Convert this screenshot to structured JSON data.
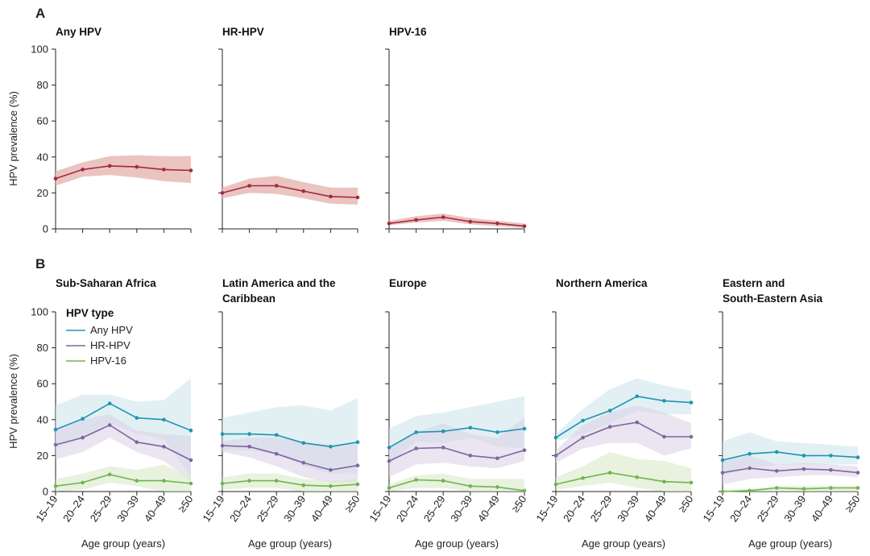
{
  "colors": {
    "overall": "#a3293c",
    "overall_band": "#e8b8b5",
    "any_hpv": "#1f95b0",
    "any_hpv_band": "#cfe6ec",
    "hr_hpv": "#7d67a3",
    "hr_hpv_band": "#dcd3e6",
    "hpv16": "#6fb54d",
    "hpv16_band": "#d8e9c9"
  },
  "labels": {
    "panel_a": "A",
    "panel_b": "B",
    "ylabel": "HPV prevalence (%)",
    "xlabel": "Age group (years)",
    "legend_title": "HPV type"
  },
  "chart_data": [
    {
      "panel": "A",
      "title": "Any HPV",
      "type": "line",
      "categories": [
        "15–19",
        "20–24",
        "25–29",
        "30–39",
        "40–49",
        "≥50"
      ],
      "ylim": [
        0,
        100
      ],
      "yticks": [
        0,
        20,
        40,
        60,
        80,
        100
      ],
      "xlabel": "",
      "ylabel": "HPV prevalence (%)",
      "series": [
        {
          "name": "Any HPV",
          "values": [
            28,
            33,
            35,
            34.5,
            33,
            32.5
          ],
          "lower": [
            24,
            29,
            30,
            28.5,
            26.5,
            25.5
          ],
          "upper": [
            32,
            37,
            40.5,
            41,
            40.5,
            40.5
          ]
        }
      ]
    },
    {
      "panel": "A",
      "title": "HR-HPV",
      "type": "line",
      "categories": [
        "15–19",
        "20–24",
        "25–29",
        "30–39",
        "40–49",
        "≥50"
      ],
      "ylim": [
        0,
        100
      ],
      "yticks": [
        0,
        20,
        40,
        60,
        80,
        100
      ],
      "xlabel": "",
      "ylabel": "",
      "series": [
        {
          "name": "HR-HPV",
          "values": [
            20,
            24,
            24,
            21,
            18,
            17.5
          ],
          "lower": [
            17,
            20,
            19.5,
            17,
            14,
            13.5
          ],
          "upper": [
            23,
            28,
            29.5,
            26,
            23,
            23
          ]
        }
      ]
    },
    {
      "panel": "A",
      "title": "HPV-16",
      "type": "line",
      "categories": [
        "15–19",
        "20–24",
        "25–29",
        "30–39",
        "40–49",
        "≥50"
      ],
      "ylim": [
        0,
        100
      ],
      "yticks": [
        0,
        20,
        40,
        60,
        80,
        100
      ],
      "xlabel": "",
      "ylabel": "",
      "series": [
        {
          "name": "HPV-16",
          "values": [
            3,
            5,
            6.5,
            4,
            3,
            1.5
          ],
          "lower": [
            2,
            3.5,
            4.5,
            2.5,
            1.5,
            0.5
          ],
          "upper": [
            4.5,
            7,
            8.5,
            6,
            4.5,
            3
          ]
        }
      ]
    },
    {
      "panel": "B",
      "title": "Sub-Saharan Africa",
      "type": "line",
      "categories": [
        "15–19",
        "20–24",
        "25–29",
        "30–39",
        "40–49",
        "≥50"
      ],
      "ylim": [
        0,
        100
      ],
      "yticks": [
        0,
        20,
        40,
        60,
        80,
        100
      ],
      "xlabel": "Age group (years)",
      "ylabel": "HPV prevalence (%)",
      "series": [
        {
          "name": "Any HPV",
          "values": [
            34.5,
            40.5,
            49,
            41,
            40,
            34
          ],
          "lower": [
            24,
            30,
            38,
            32,
            29,
            8
          ],
          "upper": [
            48,
            54,
            54,
            50,
            51,
            63
          ]
        },
        {
          "name": "HR-HPV",
          "values": [
            26,
            30,
            37,
            27.5,
            25,
            17.5
          ],
          "lower": [
            18,
            22,
            30,
            22,
            17,
            6
          ],
          "upper": [
            35,
            40,
            43,
            34,
            32,
            31
          ]
        },
        {
          "name": "HPV-16",
          "values": [
            3,
            5,
            9.5,
            6,
            6,
            4.5
          ],
          "lower": [
            0,
            1,
            5,
            3,
            0,
            0
          ],
          "upper": [
            7,
            10,
            14,
            12,
            15,
            8
          ]
        }
      ]
    },
    {
      "panel": "B",
      "title": "Latin America and the Caribbean",
      "type": "line",
      "categories": [
        "15–19",
        "20–24",
        "25–29",
        "30–39",
        "40–49",
        "≥50"
      ],
      "ylim": [
        0,
        100
      ],
      "yticks": [
        0,
        20,
        40,
        60,
        80,
        100
      ],
      "xlabel": "Age group (years)",
      "ylabel": "",
      "series": [
        {
          "name": "Any HPV",
          "values": [
            32,
            32,
            31.5,
            27,
            25,
            27.5
          ],
          "lower": [
            23,
            23,
            21,
            14,
            10,
            10
          ],
          "upper": [
            41,
            44,
            47,
            48,
            45,
            52
          ]
        },
        {
          "name": "HR-HPV",
          "values": [
            25.5,
            25,
            21,
            16,
            12,
            14.5
          ],
          "lower": [
            22,
            19,
            14,
            8,
            5,
            5
          ],
          "upper": [
            28,
            30,
            30,
            28,
            26,
            27
          ]
        },
        {
          "name": "HPV-16",
          "values": [
            4.5,
            6,
            6,
            3.5,
            3,
            4
          ],
          "lower": [
            1,
            2,
            2,
            0,
            0,
            0
          ],
          "upper": [
            8,
            10,
            10,
            7,
            6,
            7
          ]
        }
      ]
    },
    {
      "panel": "B",
      "title": "Europe",
      "type": "line",
      "categories": [
        "15–19",
        "20–24",
        "25–29",
        "30–39",
        "40–49",
        "≥50"
      ],
      "ylim": [
        0,
        100
      ],
      "yticks": [
        0,
        20,
        40,
        60,
        80,
        100
      ],
      "xlabel": "Age group (years)",
      "ylabel": "",
      "series": [
        {
          "name": "Any HPV",
          "values": [
            24.5,
            33,
            33.5,
            35.5,
            33,
            35
          ],
          "lower": [
            15,
            28,
            27,
            30,
            25,
            24
          ],
          "upper": [
            35,
            42,
            44,
            47,
            50,
            53
          ]
        },
        {
          "name": "HR-HPV",
          "values": [
            17,
            24,
            24.5,
            20,
            18.5,
            23
          ],
          "lower": [
            8,
            15,
            16,
            14,
            13,
            17
          ],
          "upper": [
            24,
            33,
            38,
            32,
            30,
            41
          ]
        },
        {
          "name": "HPV-16",
          "values": [
            2,
            6.5,
            6,
            3,
            2.5,
            0.5
          ],
          "lower": [
            0,
            2,
            2,
            0,
            0,
            0
          ],
          "upper": [
            4,
            9,
            10,
            7,
            7,
            7
          ]
        }
      ]
    },
    {
      "panel": "B",
      "title": "Northern America",
      "type": "line",
      "categories": [
        "15–19",
        "20–24",
        "25–29",
        "30–39",
        "40–49",
        "≥50"
      ],
      "ylim": [
        0,
        100
      ],
      "yticks": [
        0,
        20,
        40,
        60,
        80,
        100
      ],
      "xlabel": "Age group (years)",
      "ylabel": "",
      "series": [
        {
          "name": "Any HPV",
          "values": [
            30,
            39.5,
            45,
            53,
            50.5,
            49.5
          ],
          "lower": [
            28,
            32,
            38,
            45,
            43,
            43
          ],
          "upper": [
            32,
            46,
            57,
            63,
            59,
            56
          ]
        },
        {
          "name": "HR-HPV",
          "values": [
            20,
            30,
            36,
            38.5,
            30.5,
            30.5
          ],
          "lower": [
            16,
            24,
            27,
            27,
            20,
            24
          ],
          "upper": [
            23,
            37,
            44,
            48,
            44,
            38
          ]
        },
        {
          "name": "HPV-16",
          "values": [
            4,
            7.5,
            10.5,
            8,
            5.5,
            5
          ],
          "lower": [
            1,
            3,
            5,
            2,
            0,
            0
          ],
          "upper": [
            8,
            14,
            22,
            18,
            17,
            13
          ]
        }
      ]
    },
    {
      "panel": "B",
      "title": "Eastern and South-Eastern Asia",
      "type": "line",
      "categories": [
        "15–19",
        "20–24",
        "25–29",
        "30–39",
        "40–49",
        "≥50"
      ],
      "ylim": [
        0,
        100
      ],
      "yticks": [
        0,
        20,
        40,
        60,
        80,
        100
      ],
      "xlabel": "Age group (years)",
      "ylabel": "",
      "series": [
        {
          "name": "Any HPV",
          "values": [
            17.5,
            21,
            22,
            20,
            20,
            19
          ],
          "lower": [
            9,
            13,
            15,
            15,
            15,
            15
          ],
          "upper": [
            28,
            33,
            28,
            27,
            26,
            25
          ]
        },
        {
          "name": "HR-HPV",
          "values": [
            10.5,
            13,
            11.5,
            12.5,
            12,
            10.5
          ],
          "lower": [
            4,
            7,
            8,
            9,
            9,
            8
          ],
          "upper": [
            17,
            20,
            15,
            16,
            15,
            14
          ]
        },
        {
          "name": "HPV-16",
          "values": [
            0,
            0.5,
            2,
            1.5,
            2,
            2
          ],
          "lower": [
            0,
            0,
            0,
            0,
            0,
            0
          ],
          "upper": [
            1,
            1.5,
            3,
            3,
            3,
            3
          ]
        }
      ]
    }
  ]
}
